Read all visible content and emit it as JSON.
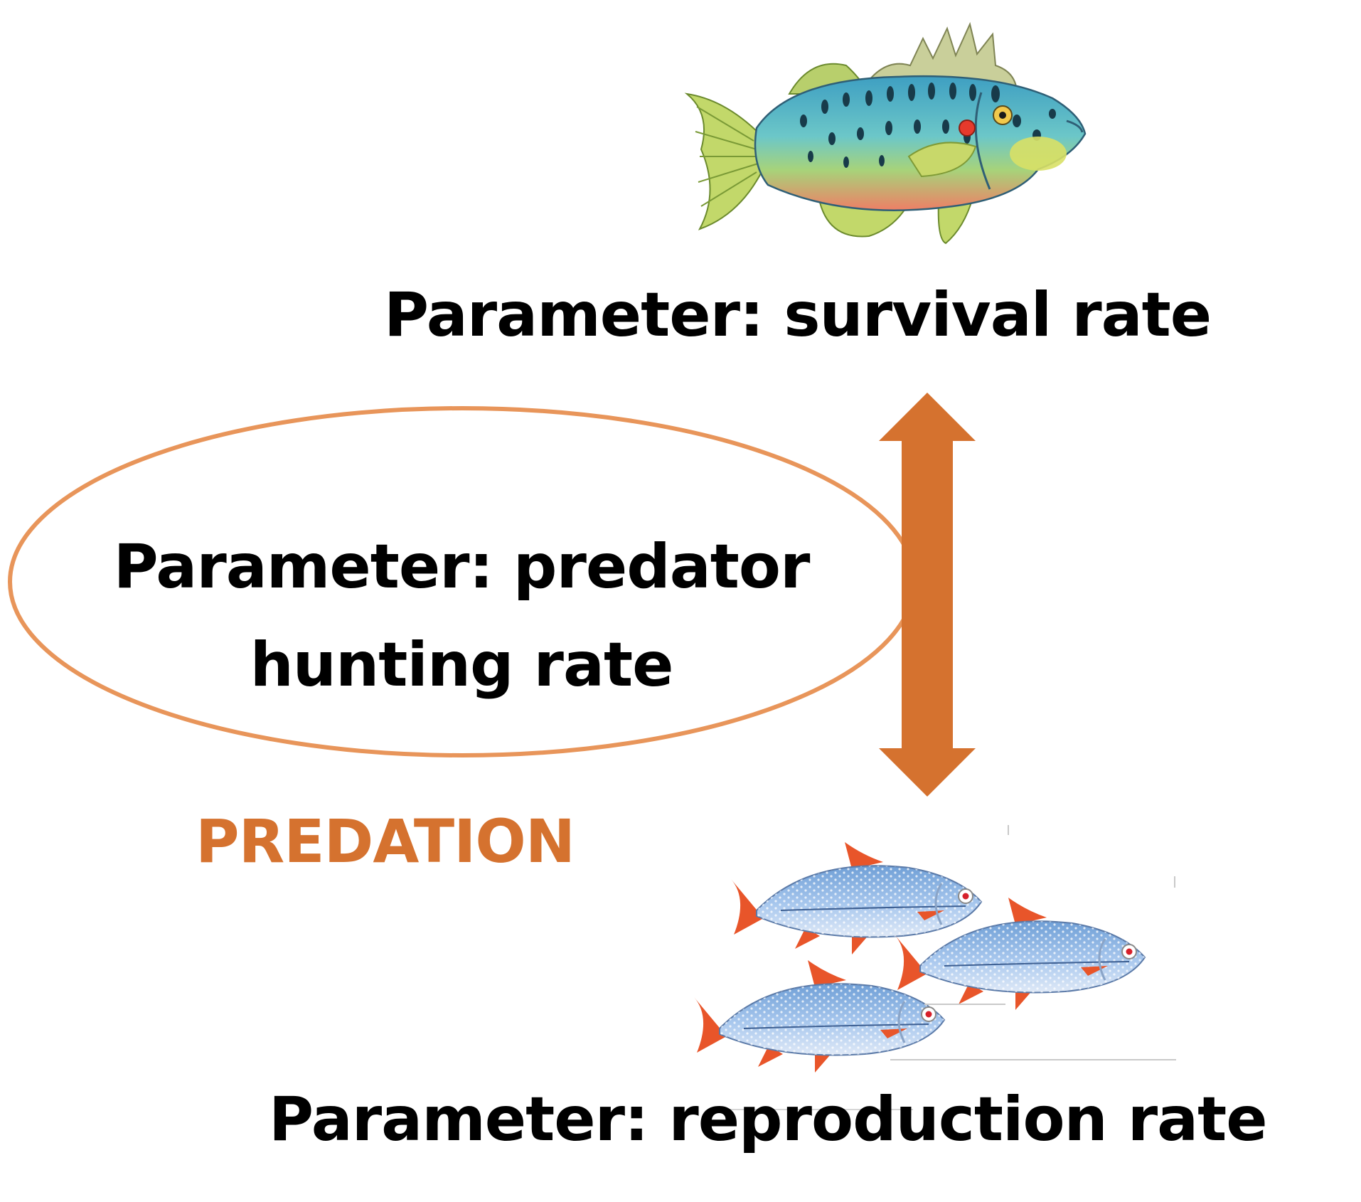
{
  "diagram": {
    "nodes": {
      "survival": {
        "text": "Parameter: survival rate",
        "icon": "sunfish-icon"
      },
      "hunting": {
        "line1": "Parameter: predator",
        "line2": "hunting rate"
      },
      "predation": {
        "text": "PREDATION"
      },
      "reproduction": {
        "text": "Parameter: reproduction rate",
        "icon": "minnow-school-icon"
      }
    },
    "edges": [
      {
        "from": "survival",
        "to": "reproduction",
        "style": "double-headed-arrow"
      }
    ],
    "colors": {
      "arrow": "#d5722f",
      "ellipse_stroke": "#e8955a",
      "predation_text": "#d5722f",
      "text": "#000000"
    }
  }
}
